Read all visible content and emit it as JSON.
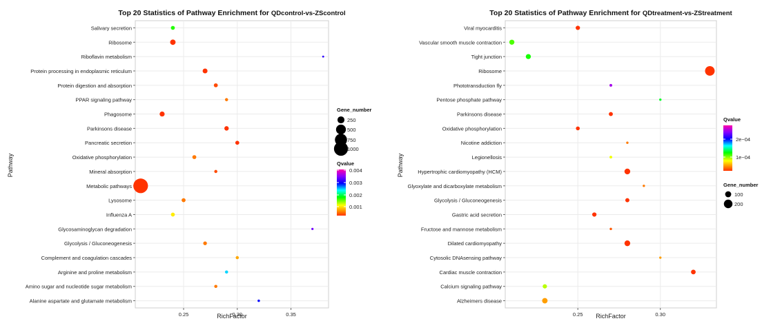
{
  "chart_data": [
    {
      "type": "scatter",
      "title_prefix": "Top 20 Statistics of Pathway Enrichment for ",
      "title_suffix": "QDcontrol-vs-ZScontrol",
      "xlabel": "RichFactor",
      "ylabel": "Pathway",
      "xlim": [
        0.205,
        0.385
      ],
      "xticks": [
        "0.25",
        "0.30",
        "0.35"
      ],
      "grid": true,
      "legend_position": "right",
      "categories": [
        "Salivary secretion",
        "Ribosome",
        "Riboflavin metabolism",
        "Protein processing in endoplasmic reticulum",
        "Protein digestion and absorption",
        "PPAR signaling pathway",
        "Phagosome",
        "Parkinsons disease",
        "Pancreatic secretion",
        "Oxidative phosphorylation",
        "Mineral absorption",
        "Metabolic pathways",
        "Lysosome",
        "Influenza A",
        "Glycosaminoglycan degradation",
        "Glycolysis / Gluconeogenesis",
        "Complement and coagulation cascades",
        "Arginine and proline metabolism",
        "Amino sugar and nucleotide sugar metabolism",
        "Alanine aspartate and glutamate metabolism"
      ],
      "points": [
        {
          "y": "Salivary secretion",
          "x": 0.24,
          "gene_number": 80,
          "qvalue": 0.0015
        },
        {
          "y": "Ribosome",
          "x": 0.24,
          "gene_number": 150,
          "qvalue": 0.0
        },
        {
          "y": "Riboflavin metabolism",
          "x": 0.38,
          "gene_number": 20,
          "qvalue": 0.003
        },
        {
          "y": "Protein processing in endoplasmic reticulum",
          "x": 0.27,
          "gene_number": 120,
          "qvalue": 0.0
        },
        {
          "y": "Protein digestion and absorption",
          "x": 0.28,
          "gene_number": 80,
          "qvalue": 0.0001
        },
        {
          "y": "PPAR signaling pathway",
          "x": 0.29,
          "gene_number": 50,
          "qvalue": 0.0003
        },
        {
          "y": "Phagosome",
          "x": 0.23,
          "gene_number": 130,
          "qvalue": 0.0
        },
        {
          "y": "Parkinsons disease",
          "x": 0.29,
          "gene_number": 100,
          "qvalue": 0.0
        },
        {
          "y": "Pancreatic secretion",
          "x": 0.3,
          "gene_number": 80,
          "qvalue": 0.0
        },
        {
          "y": "Oxidative phosphorylation",
          "x": 0.26,
          "gene_number": 80,
          "qvalue": 0.0003
        },
        {
          "y": "Mineral absorption",
          "x": 0.28,
          "gene_number": 50,
          "qvalue": 0.0001
        },
        {
          "y": "Metabolic pathways",
          "x": 0.21,
          "gene_number": 1100,
          "qvalue": 0.0
        },
        {
          "y": "Lysosome",
          "x": 0.25,
          "gene_number": 80,
          "qvalue": 0.0003
        },
        {
          "y": "Influenza A",
          "x": 0.24,
          "gene_number": 80,
          "qvalue": 0.0008
        },
        {
          "y": "Glycosaminoglycan degradation",
          "x": 0.37,
          "gene_number": 25,
          "qvalue": 0.0033
        },
        {
          "y": "Glycolysis / Gluconeogenesis",
          "x": 0.27,
          "gene_number": 70,
          "qvalue": 0.0003
        },
        {
          "y": "Complement and coagulation cascades",
          "x": 0.3,
          "gene_number": 50,
          "qvalue": 0.0005
        },
        {
          "y": "Arginine and proline metabolism",
          "x": 0.29,
          "gene_number": 50,
          "qvalue": 0.0023
        },
        {
          "y": "Amino sugar and nucleotide sugar metabolism",
          "x": 0.28,
          "gene_number": 50,
          "qvalue": 0.0003
        },
        {
          "y": "Alanine aspartate and glutamate metabolism",
          "x": 0.32,
          "gene_number": 30,
          "qvalue": 0.0028
        }
      ],
      "size_legend": {
        "title": "Gene_number",
        "entries": [
          250,
          500,
          750,
          1000
        ]
      },
      "color_legend": {
        "title": "Qvalue",
        "min": 0,
        "max": 0.004,
        "ticks": [
          "0.004",
          "0.003",
          "0.002",
          "0.001"
        ]
      }
    },
    {
      "type": "scatter",
      "title_prefix": "Top 20 Statistics of Pathway Enrichment for ",
      "title_suffix": "QDtreatment-vs-ZStreatment",
      "xlabel": "RichFactor",
      "ylabel": "Pathway",
      "xlim": [
        0.206,
        0.334
      ],
      "xticks": [
        "0.25",
        "0.30"
      ],
      "grid": true,
      "legend_position": "right",
      "categories": [
        "Viral myocarditis",
        "Vascular smooth muscle contraction",
        "Tight junction",
        "Ribosome",
        "Phototransduction  fly",
        "Pentose phosphate pathway",
        "Parkinsons disease",
        "Oxidative phosphorylation",
        "Nicotine addiction",
        "Legionellosis",
        "Hypertrophic cardiomyopathy (HCM)",
        "Glyoxylate and dicarboxylate metabolism",
        "Glycolysis / Gluconeogenesis",
        "Gastric acid secretion",
        "Fructose and mannose metabolism",
        "Dilated cardiomyopathy",
        "Cytosolic DNAsensing pathway",
        "Cardiac muscle contraction",
        "Calcium signaling pathway",
        "Alzheimers disease"
      ],
      "points": [
        {
          "y": "Viral myocarditis",
          "x": 0.25,
          "gene_number": 50,
          "qvalue": 0.0
        },
        {
          "y": "Vascular smooth muscle contraction",
          "x": 0.21,
          "gene_number": 70,
          "qvalue": 9e-05
        },
        {
          "y": "Tight junction",
          "x": 0.22,
          "gene_number": 70,
          "qvalue": 0.0001
        },
        {
          "y": "Ribosome",
          "x": 0.33,
          "gene_number": 250,
          "qvalue": 0.0
        },
        {
          "y": "Phototransduction  fly",
          "x": 0.27,
          "gene_number": 20,
          "qvalue": 0.00023
        },
        {
          "y": "Pentose phosphate pathway",
          "x": 0.3,
          "gene_number": 15,
          "qvalue": 0.00011
        },
        {
          "y": "Parkinsons disease",
          "x": 0.27,
          "gene_number": 45,
          "qvalue": 0.0
        },
        {
          "y": "Oxidative phosphorylation",
          "x": 0.25,
          "gene_number": 40,
          "qvalue": 0.0
        },
        {
          "y": "Nicotine addiction",
          "x": 0.28,
          "gene_number": 15,
          "qvalue": 2e-05
        },
        {
          "y": "Legionellosis",
          "x": 0.27,
          "gene_number": 20,
          "qvalue": 6e-05
        },
        {
          "y": "Hypertrophic cardiomyopathy (HCM)",
          "x": 0.28,
          "gene_number": 90,
          "qvalue": 0.0
        },
        {
          "y": "Glyoxylate and dicarboxylate metabolism",
          "x": 0.29,
          "gene_number": 15,
          "qvalue": 2e-05
        },
        {
          "y": "Glycolysis / Gluconeogenesis",
          "x": 0.28,
          "gene_number": 45,
          "qvalue": 0.0
        },
        {
          "y": "Gastric acid secretion",
          "x": 0.26,
          "gene_number": 50,
          "qvalue": 0.0
        },
        {
          "y": "Fructose and mannose metabolism",
          "x": 0.27,
          "gene_number": 15,
          "qvalue": 1e-05
        },
        {
          "y": "Dilated cardiomyopathy",
          "x": 0.28,
          "gene_number": 90,
          "qvalue": 0.0
        },
        {
          "y": "Cytosolic DNAsensing pathway",
          "x": 0.3,
          "gene_number": 15,
          "qvalue": 3e-05
        },
        {
          "y": "Cardiac muscle contraction",
          "x": 0.32,
          "gene_number": 60,
          "qvalue": 0.0
        },
        {
          "y": "Calcium signaling pathway",
          "x": 0.23,
          "gene_number": 50,
          "qvalue": 7e-05
        },
        {
          "y": "Alzheimers disease",
          "x": 0.23,
          "gene_number": 80,
          "qvalue": 3e-05
        }
      ],
      "size_legend": {
        "title": "Gene_number",
        "entries": [
          100,
          200
        ]
      },
      "color_legend": {
        "title": "Qvalue",
        "min": 0,
        "max": 0.00026,
        "ticks": [
          "2e−04",
          "1e−04"
        ]
      }
    }
  ]
}
